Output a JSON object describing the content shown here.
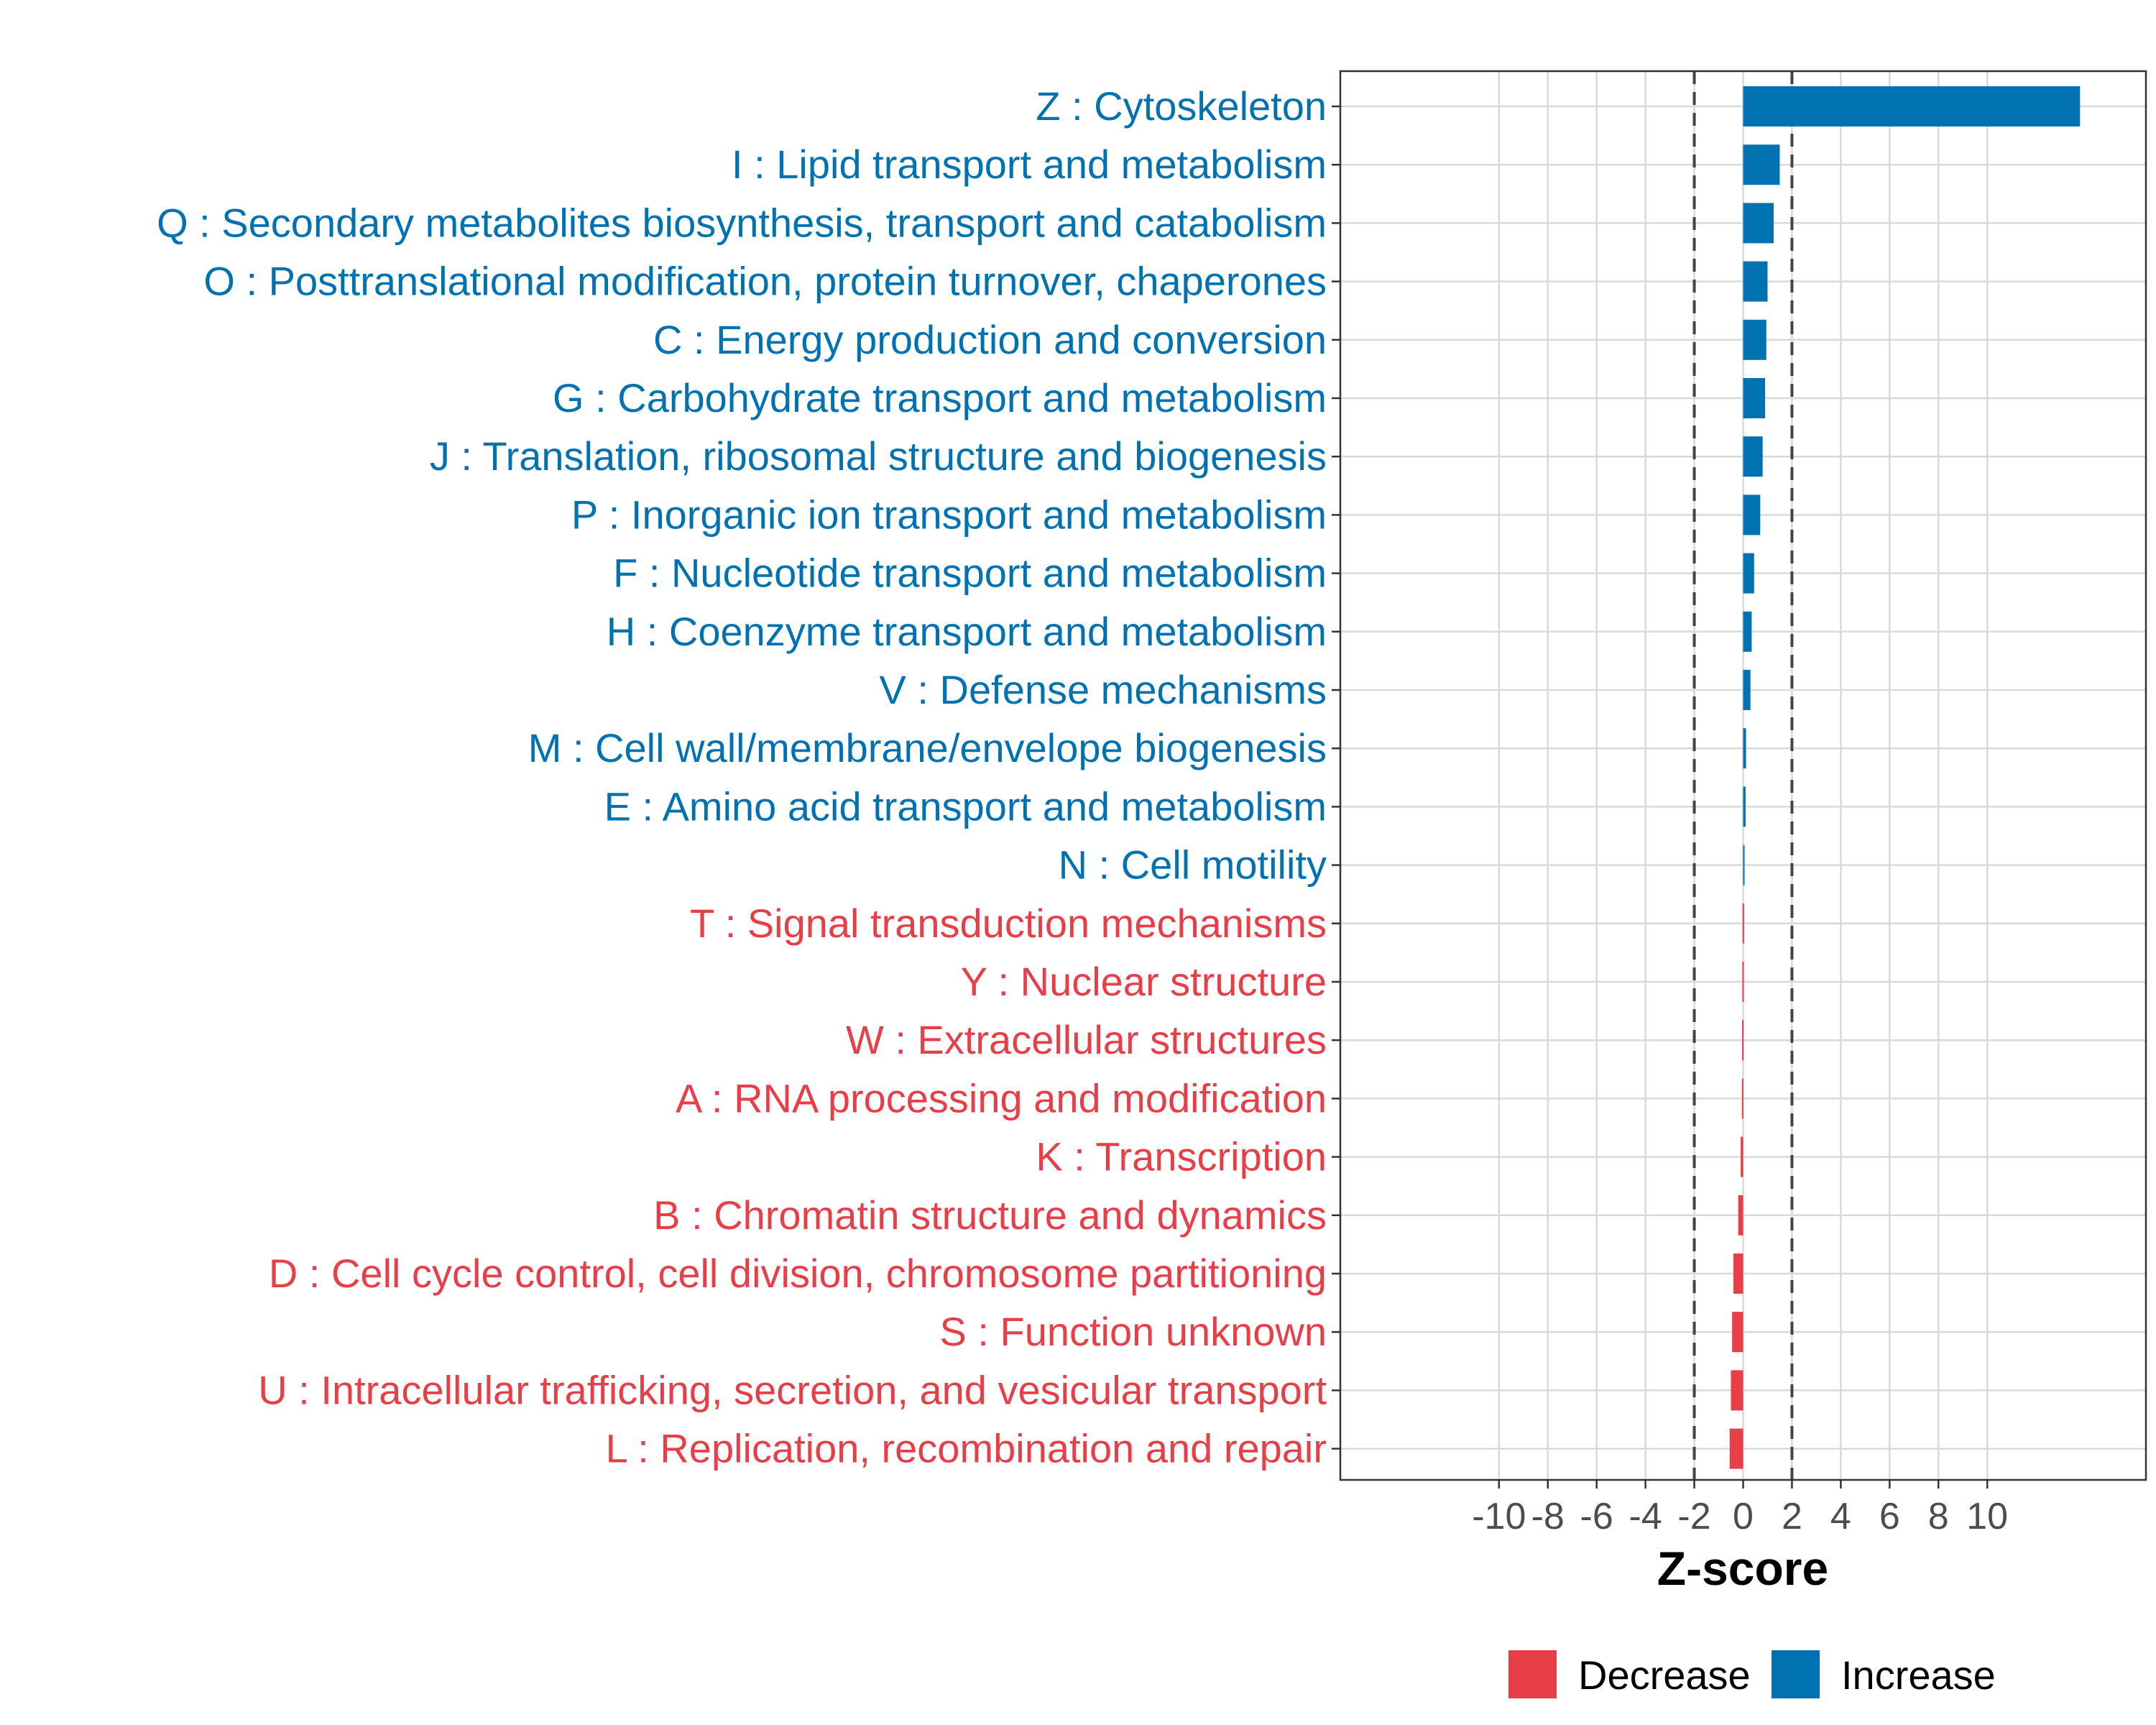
{
  "chart_data": {
    "type": "bar",
    "orientation": "horizontal",
    "xlabel": "Z-score",
    "xlim": [
      -16.5,
      16.5
    ],
    "xticks": [
      -10,
      -8,
      -6,
      -4,
      -2,
      0,
      2,
      4,
      6,
      8,
      10
    ],
    "xtick_labels": [
      "-10",
      "-8",
      "-6",
      "-4",
      "-2",
      "0",
      "2",
      "4",
      "6",
      "8",
      "10"
    ],
    "threshold_lines": [
      -2,
      2
    ],
    "grid": true,
    "colors": {
      "Increase": "#0072B2",
      "Decrease": "#E83E48"
    },
    "legend": {
      "position": "bottom",
      "entries": [
        {
          "label": "Decrease",
          "color": "#E83E48"
        },
        {
          "label": "Increase",
          "color": "#0072B2"
        }
      ]
    },
    "categories": [
      "Z : Cytoskeleton",
      "I : Lipid transport and metabolism",
      "Q : Secondary metabolites biosynthesis, transport and catabolism",
      "O : Posttranslational modification, protein turnover, chaperones",
      "C : Energy production and conversion",
      "G : Carbohydrate transport and metabolism",
      "J : Translation, ribosomal structure and biogenesis",
      "P : Inorganic ion transport and metabolism",
      "F : Nucleotide transport and metabolism",
      "H : Coenzyme transport and metabolism",
      "V : Defense mechanisms",
      "M : Cell wall/membrane/envelope biogenesis",
      "E : Amino acid transport and metabolism",
      "N : Cell motility",
      "T : Signal transduction mechanisms",
      "Y : Nuclear structure",
      "W : Extracellular structures",
      "A : RNA processing and modification",
      "K : Transcription",
      "B : Chromatin structure and dynamics",
      "D : Cell cycle control, cell division, chromosome partitioning",
      "S : Function unknown",
      "U : Intracellular trafficking, secretion, and vesicular transport",
      "L : Replication, recombination and repair"
    ],
    "values": [
      13.8,
      1.5,
      1.25,
      1.0,
      0.95,
      0.9,
      0.8,
      0.7,
      0.45,
      0.35,
      0.3,
      0.12,
      0.1,
      0.03,
      -0.02,
      -0.03,
      -0.04,
      -0.05,
      -0.1,
      -0.2,
      -0.4,
      -0.45,
      -0.5,
      -0.55
    ],
    "groups": [
      "Increase",
      "Increase",
      "Increase",
      "Increase",
      "Increase",
      "Increase",
      "Increase",
      "Increase",
      "Increase",
      "Increase",
      "Increase",
      "Increase",
      "Increase",
      "Increase",
      "Decrease",
      "Decrease",
      "Decrease",
      "Decrease",
      "Decrease",
      "Decrease",
      "Decrease",
      "Decrease",
      "Decrease",
      "Decrease"
    ]
  }
}
